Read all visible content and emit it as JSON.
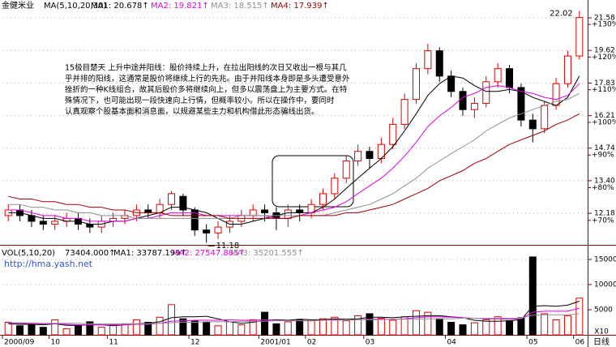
{
  "chart_data": [
    {
      "type": "candlestick",
      "title": "金健米业",
      "indicator": "MA(5,10,20,30)",
      "log_scale": true,
      "grid": true,
      "ylim": [
        11.16,
        22.1
      ],
      "yticks": [
        21.58,
        19.62,
        17.83,
        16.21,
        14.74,
        {
          "value": 13.4,
          "label": "13.40"
        },
        12.18
      ],
      "y2lim": [
        63,
        134.5
      ],
      "y2ticks": [
        {
          "value": 130,
          "label": "+130%"
        },
        {
          "value": 120,
          "label": "+120%"
        },
        {
          "value": 110,
          "label": "+110%"
        },
        {
          "value": 100,
          "label": "+100%"
        },
        {
          "value": 90,
          "label": "+90%"
        },
        {
          "value": 80,
          "label": "+80%"
        },
        {
          "value": 70,
          "label": "+70%"
        }
      ],
      "up_color": "#e00000",
      "down_color": "#000000",
      "open": [
        12.1,
        12.3,
        12.1,
        11.9,
        11.8,
        11.9,
        12.0,
        11.8,
        11.7,
        11.9,
        12.0,
        12.1,
        12.3,
        12.2,
        12.5,
        12.8,
        12.3,
        11.6,
        11.5,
        11.7,
        11.9,
        12.1,
        12.3,
        12.2,
        12.0,
        12.3,
        12.2,
        12.5,
        12.9,
        13.5,
        14.2,
        14.6,
        14.3,
        14.9,
        15.8,
        17.0,
        18.6,
        19.6,
        18.2,
        17.4,
        16.5,
        16.8,
        17.9,
        18.6,
        17.6,
        16.0,
        15.6,
        16.7,
        17.8,
        19.3
      ],
      "high": [
        12.5,
        12.5,
        12.3,
        12.1,
        12.1,
        12.2,
        12.2,
        12.0,
        12.1,
        12.2,
        12.3,
        12.5,
        12.5,
        12.7,
        13.0,
        12.9,
        12.4,
        11.8,
        11.9,
        12.1,
        12.3,
        12.5,
        12.5,
        12.4,
        12.5,
        12.5,
        12.7,
        13.1,
        13.7,
        14.4,
        14.9,
        14.8,
        15.2,
        16.1,
        17.3,
        18.9,
        20.0,
        19.8,
        18.5,
        17.6,
        17.1,
        18.2,
        18.9,
        18.8,
        17.8,
        16.3,
        16.9,
        18.1,
        19.6,
        22.02
      ],
      "low": [
        11.9,
        11.9,
        11.7,
        11.6,
        11.6,
        11.7,
        11.6,
        11.5,
        11.5,
        11.7,
        11.8,
        11.9,
        12.0,
        12.0,
        12.3,
        12.1,
        11.4,
        11.18,
        11.3,
        11.5,
        11.7,
        11.9,
        11.9,
        11.6,
        11.7,
        11.9,
        12.0,
        12.3,
        12.7,
        13.3,
        14.0,
        13.9,
        14.1,
        14.7,
        15.6,
        16.8,
        18.3,
        17.9,
        17.1,
        16.2,
        16.1,
        16.6,
        17.6,
        17.3,
        15.7,
        15.0,
        15.4,
        16.5,
        17.6,
        19.1
      ],
      "close": [
        12.3,
        12.1,
        11.9,
        11.8,
        11.9,
        12.0,
        11.8,
        11.7,
        11.9,
        12.0,
        12.1,
        12.3,
        12.2,
        12.5,
        12.9,
        12.3,
        11.6,
        11.5,
        11.7,
        11.9,
        12.1,
        12.3,
        12.2,
        12.0,
        12.3,
        12.2,
        12.5,
        12.9,
        13.5,
        14.2,
        14.6,
        14.3,
        14.9,
        15.8,
        17.0,
        18.6,
        19.6,
        18.2,
        17.4,
        16.5,
        16.8,
        17.9,
        18.6,
        17.6,
        16.0,
        15.6,
        16.7,
        17.8,
        19.3,
        21.6
      ],
      "series": [
        {
          "name": "MA1: 20.678↑",
          "color": "#000000",
          "values": [
            12.2,
            12.2,
            12.1,
            12.0,
            12.0,
            11.9,
            11.9,
            11.8,
            11.8,
            11.9,
            11.9,
            12.0,
            12.1,
            12.2,
            12.4,
            12.4,
            12.3,
            12.2,
            12.0,
            11.8,
            11.8,
            11.9,
            12.0,
            12.1,
            12.2,
            12.2,
            12.2,
            12.4,
            12.7,
            13.1,
            13.5,
            13.9,
            14.3,
            14.8,
            15.5,
            16.3,
            17.2,
            17.8,
            18.2,
            18.1,
            17.7,
            17.4,
            17.4,
            17.5,
            17.4,
            17.1,
            16.9,
            16.7,
            17.1,
            18.2
          ]
        },
        {
          "name": "MA2: 19.821↑",
          "color": "#e000e0",
          "values": [
            12.3,
            12.3,
            12.2,
            12.1,
            12.1,
            12.0,
            12.0,
            11.9,
            11.9,
            11.9,
            11.9,
            12.0,
            12.0,
            12.1,
            12.2,
            12.2,
            12.2,
            12.1,
            12.1,
            12.1,
            12.1,
            12.1,
            12.1,
            12.0,
            12.0,
            12.1,
            12.2,
            12.3,
            12.4,
            12.6,
            12.9,
            13.2,
            13.5,
            13.9,
            14.4,
            15.0,
            15.7,
            16.2,
            16.6,
            17.1,
            17.3,
            17.6,
            17.7,
            17.6,
            17.4,
            17.3,
            17.1,
            17.0,
            17.2,
            17.8
          ]
        },
        {
          "name": "MA3: 18.515↑",
          "color": "#909090",
          "values": [
            12.5,
            12.5,
            12.4,
            12.4,
            12.3,
            12.3,
            12.2,
            12.2,
            12.1,
            12.1,
            12.1,
            12.0,
            12.0,
            12.0,
            12.0,
            12.0,
            12.0,
            12.0,
            12.0,
            12.0,
            12.1,
            12.1,
            12.1,
            12.1,
            12.1,
            12.1,
            12.1,
            12.1,
            12.2,
            12.3,
            12.4,
            12.5,
            12.7,
            12.9,
            13.2,
            13.5,
            13.9,
            14.2,
            14.5,
            14.8,
            15.1,
            15.5,
            15.8,
            16.1,
            16.3,
            16.5,
            16.7,
            16.9,
            17.0,
            17.3
          ]
        },
        {
          "name": "MA4: 17.939↑",
          "color": "#a00000",
          "values": [
            12.8,
            12.7,
            12.7,
            12.6,
            12.6,
            12.5,
            12.5,
            12.4,
            12.4,
            12.3,
            12.3,
            12.2,
            12.2,
            12.2,
            12.1,
            12.1,
            12.1,
            12.1,
            12.1,
            12.0,
            12.0,
            12.0,
            12.0,
            12.0,
            12.0,
            12.1,
            12.1,
            12.1,
            12.1,
            12.2,
            12.2,
            12.3,
            12.4,
            12.5,
            12.7,
            12.9,
            13.1,
            13.4,
            13.6,
            13.8,
            14.1,
            14.3,
            14.6,
            14.9,
            15.1,
            15.3,
            15.5,
            15.8,
            16.0,
            16.3
          ]
        }
      ],
      "annotations": [
        "22.02",
        "11.18"
      ],
      "text_block": [
        "15极目楚天  上升中途并阳线：股价持续上升，在拉出阳线的次日又收出一根与其几",
        "乎并排的阳线，这通常是股价将继续上行的先兆。由于并阳线本身即是多头遭受意外",
        "挫折的一种K线组合，故其后股价多将继续向上，但多以震荡盘上为主要方式。在特",
        "殊情况下，也可能出现一段快速向上行情，但概率较小。所以在操作中，要同时",
        "认真观察个股基本面和消息面，以规避某些主力和机构借此形态骗线出货。"
      ]
    },
    {
      "type": "bar",
      "indicator": "VOL(5,10,20)",
      "latest": "73404.000↑",
      "grid": true,
      "ylim": [
        0,
        17260
      ],
      "yticks": [
        5000,
        10000,
        15000
      ],
      "categories": [
        "2000/09",
        null,
        null,
        null,
        "10",
        null,
        null,
        null,
        null,
        "11",
        null,
        null,
        null,
        null,
        null,
        null,
        "12",
        null,
        null,
        null,
        null,
        null,
        "2001/01",
        null,
        null,
        null,
        "02",
        null,
        null,
        null,
        null,
        "03",
        null,
        null,
        null,
        null,
        null,
        null,
        "04",
        null,
        null,
        null,
        null,
        null,
        null,
        "05",
        null,
        null,
        null,
        "06"
      ],
      "values": [
        2500,
        1800,
        2200,
        1500,
        3000,
        1200,
        1800,
        2600,
        1500,
        2000,
        2200,
        3000,
        2500,
        3500,
        6000,
        3200,
        2800,
        2500,
        1800,
        2600,
        2000,
        3000,
        4500,
        2200,
        2600,
        3000,
        2800,
        3200,
        3500,
        2800,
        3800,
        4200,
        3300,
        2900,
        3600,
        4800,
        4500,
        3200,
        2500,
        2000,
        2400,
        3000,
        3600,
        2800,
        3400,
        15500,
        4200,
        3000,
        3800,
        7300
      ],
      "series": [
        {
          "name": "MA1: 33787.199↑",
          "color": "#000000",
          "values": [
            2200,
            2100,
            2100,
            2000,
            2200,
            1900,
            1900,
            2000,
            2000,
            1800,
            2000,
            2200,
            2300,
            2600,
            3400,
            3600,
            3600,
            3700,
            3200,
            2600,
            2300,
            2500,
            2900,
            3000,
            2900,
            3100,
            3000,
            3000,
            3200,
            3100,
            3200,
            3500,
            3500,
            3400,
            3600,
            3700,
            3800,
            3800,
            3600,
            3400,
            2900,
            2700,
            2700,
            2800,
            3000,
            5700,
            5800,
            5700,
            5900,
            6700
          ]
        },
        {
          "name": "MA2: 27547.885↑",
          "color": "#e000e0",
          "values": [
            2300,
            2300,
            2200,
            2200,
            2200,
            2100,
            2000,
            2000,
            2000,
            2000,
            2000,
            2100,
            2100,
            2300,
            2700,
            2800,
            2900,
            2900,
            2900,
            3000,
            2900,
            2900,
            3000,
            2900,
            2800,
            2800,
            2800,
            2900,
            3000,
            2900,
            3000,
            3100,
            3100,
            3100,
            3200,
            3400,
            3600,
            3600,
            3500,
            3400,
            3300,
            3200,
            3200,
            3100,
            3200,
            4500,
            4700,
            4700,
            4700,
            5300
          ]
        },
        {
          "name": "MA3: 35201.555↑",
          "color": "#909090",
          "values": [
            2400,
            2400,
            2400,
            2300,
            2300,
            2300,
            2300,
            2200,
            2200,
            2200,
            2200,
            2200,
            2200,
            2300,
            2400,
            2500,
            2500,
            2600,
            2600,
            2600,
            2700,
            2700,
            2700,
            2800,
            2800,
            2800,
            2800,
            2900,
            2900,
            2900,
            3000,
            3000,
            3000,
            3100,
            3100,
            3100,
            3200,
            3200,
            3200,
            3300,
            3300,
            3300,
            3300,
            3300,
            3300,
            3900,
            4000,
            4000,
            4000,
            4200
          ]
        }
      ],
      "watermark": "http://hma.yash.net",
      "period": "日线",
      "scale_note": "X10"
    }
  ]
}
